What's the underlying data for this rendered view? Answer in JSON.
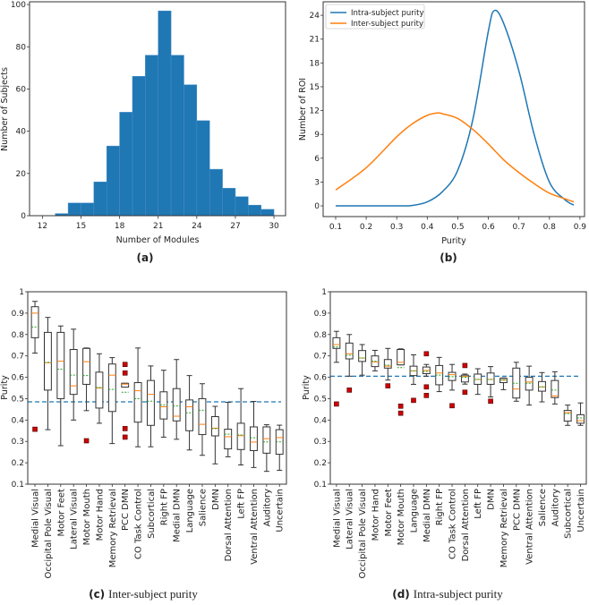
{
  "chart_data": [
    {
      "id": "a",
      "type": "bar",
      "caption_tag": "(a)",
      "caption": "",
      "xlabel": "Number of Modules",
      "ylabel": "Number of Subjects",
      "xlim": [
        11.0,
        30.9
      ],
      "ylim": [
        0,
        101.3
      ],
      "xticks": [
        12,
        15,
        18,
        21,
        24,
        27,
        30
      ],
      "yticks": [
        0,
        20,
        40,
        60,
        80,
        100
      ],
      "bin_edges": [
        12,
        13,
        14,
        15,
        16,
        17,
        18,
        19,
        20,
        21,
        22,
        23,
        24,
        25,
        26,
        27,
        28,
        29,
        30
      ],
      "values": [
        0,
        1,
        6,
        6,
        16,
        33,
        49,
        66,
        76,
        97,
        76,
        62,
        45,
        22,
        13,
        9,
        5,
        3
      ],
      "color": "#1f77b4"
    },
    {
      "id": "b",
      "type": "line",
      "caption_tag": "(b)",
      "caption": "",
      "xlabel": "Purity",
      "ylabel": "Number of ROI",
      "xlim": [
        0.059,
        0.915
      ],
      "ylim": [
        -1.35,
        25.7
      ],
      "xticks": [
        0.1,
        0.2,
        0.3,
        0.4,
        0.5,
        0.6,
        0.7,
        0.8,
        0.9
      ],
      "yticks": [
        0,
        3,
        6,
        9,
        12,
        15,
        18,
        21,
        24
      ],
      "legend": "top-left",
      "series": [
        {
          "name": "Intra-subject purity",
          "color": "#1f77b4",
          "x": [
            0.1,
            0.2,
            0.3,
            0.35,
            0.4,
            0.45,
            0.5,
            0.55,
            0.6,
            0.62,
            0.65,
            0.7,
            0.75,
            0.8,
            0.85,
            0.88
          ],
          "y": [
            0,
            0,
            0,
            0.05,
            0.5,
            1.8,
            4.5,
            11,
            22,
            24.6,
            23,
            17,
            9,
            3,
            0.8,
            0.1
          ]
        },
        {
          "name": "Inter-subject purity",
          "color": "#ff7f0e",
          "x": [
            0.1,
            0.2,
            0.3,
            0.35,
            0.4,
            0.435,
            0.45,
            0.5,
            0.55,
            0.6,
            0.65,
            0.7,
            0.75,
            0.8,
            0.85,
            0.88
          ],
          "y": [
            2.0,
            4.8,
            8.7,
            10.3,
            11.4,
            11.7,
            11.6,
            11.0,
            9.6,
            7.8,
            5.8,
            4.2,
            2.8,
            1.6,
            0.9,
            0.5
          ]
        }
      ]
    },
    {
      "id": "c",
      "type": "box",
      "caption_tag": "(c)",
      "caption": "Inter-subject purity",
      "ylabel": "Purity",
      "ylim": [
        0.1,
        1.0
      ],
      "yticks": [
        0.1,
        0.2,
        0.3,
        0.4,
        0.5,
        0.6,
        0.7,
        0.8,
        0.9,
        1.0
      ],
      "reference_line": 0.485,
      "categories": [
        "Medial Visual",
        "Occipital Pole Visual",
        "Motor Feet",
        "Lateral Visual",
        "Motor Mouth",
        "Motor Hand",
        "Memory Retrieval",
        "PCC DMN",
        "CO Task Control",
        "Subcortical",
        "Right FP",
        "Medial DMN",
        "Language",
        "Salience",
        "DMN",
        "Dorsal Attention",
        "Left FP",
        "Ventral Attention",
        "Auditory",
        "Uncertain"
      ],
      "boxes": [
        {
          "low": 0.713,
          "q1": 0.785,
          "median": 0.9,
          "mean": 0.835,
          "q3": 0.93,
          "high": 0.955,
          "outliers": [
            0.357
          ]
        },
        {
          "low": 0.355,
          "q1": 0.54,
          "median": 0.668,
          "mean": 0.67,
          "q3": 0.81,
          "high": 0.88,
          "outliers": []
        },
        {
          "low": 0.28,
          "q1": 0.5,
          "median": 0.675,
          "mean": 0.638,
          "q3": 0.81,
          "high": 0.84,
          "outliers": []
        },
        {
          "low": 0.4,
          "q1": 0.52,
          "median": 0.56,
          "mean": 0.61,
          "q3": 0.73,
          "high": 0.825,
          "outliers": []
        },
        {
          "low": 0.444,
          "q1": 0.567,
          "median": 0.673,
          "mean": 0.608,
          "q3": 0.735,
          "high": 0.737,
          "outliers": [
            0.303
          ]
        },
        {
          "low": 0.385,
          "q1": 0.456,
          "median": 0.55,
          "mean": 0.552,
          "q3": 0.624,
          "high": 0.71,
          "outliers": []
        },
        {
          "low": 0.29,
          "q1": 0.44,
          "median": 0.61,
          "mean": 0.543,
          "q3": 0.662,
          "high": 0.692,
          "outliers": []
        },
        {
          "low": 0.554,
          "q1": 0.554,
          "median": 0.568,
          "mean": 0.53,
          "q3": 0.572,
          "high": 0.572,
          "outliers": [
            0.66,
            0.62,
            0.36,
            0.32
          ]
        },
        {
          "low": 0.275,
          "q1": 0.39,
          "median": 0.537,
          "mean": 0.5,
          "q3": 0.575,
          "high": 0.737,
          "outliers": []
        },
        {
          "low": 0.275,
          "q1": 0.375,
          "median": 0.52,
          "mean": 0.488,
          "q3": 0.585,
          "high": 0.653,
          "outliers": []
        },
        {
          "low": 0.32,
          "q1": 0.405,
          "median": 0.462,
          "mean": 0.47,
          "q3": 0.532,
          "high": 0.633,
          "outliers": []
        },
        {
          "low": 0.31,
          "q1": 0.396,
          "median": 0.418,
          "mean": 0.466,
          "q3": 0.547,
          "high": 0.683,
          "outliers": []
        },
        {
          "low": 0.26,
          "q1": 0.35,
          "median": 0.462,
          "mean": 0.434,
          "q3": 0.494,
          "high": 0.608,
          "outliers": []
        },
        {
          "low": 0.235,
          "q1": 0.332,
          "median": 0.38,
          "mean": 0.446,
          "q3": 0.5,
          "high": 0.57,
          "outliers": []
        },
        {
          "low": 0.195,
          "q1": 0.326,
          "median": 0.362,
          "mean": 0.36,
          "q3": 0.416,
          "high": 0.464,
          "outliers": []
        },
        {
          "low": 0.228,
          "q1": 0.265,
          "median": 0.322,
          "mean": 0.334,
          "q3": 0.357,
          "high": 0.483,
          "outliers": []
        },
        {
          "low": 0.19,
          "q1": 0.262,
          "median": 0.327,
          "mean": 0.33,
          "q3": 0.385,
          "high": 0.547,
          "outliers": []
        },
        {
          "low": 0.178,
          "q1": 0.257,
          "median": 0.297,
          "mean": 0.317,
          "q3": 0.368,
          "high": 0.487,
          "outliers": []
        },
        {
          "low": 0.16,
          "q1": 0.245,
          "median": 0.313,
          "mean": 0.298,
          "q3": 0.368,
          "high": 0.378,
          "outliers": []
        },
        {
          "low": 0.165,
          "q1": 0.24,
          "median": 0.318,
          "mean": 0.298,
          "q3": 0.355,
          "high": 0.376,
          "outliers": []
        }
      ],
      "colors": {
        "median": "#ff7f0e",
        "mean": "#2ca02c",
        "outlier": "#d00000",
        "reference": "#1f77b4"
      }
    },
    {
      "id": "d",
      "type": "box",
      "caption_tag": "(d)",
      "caption": "Intra-subject purity",
      "ylabel": "Purity",
      "ylim": [
        0.1,
        1.0
      ],
      "yticks": [
        0.1,
        0.2,
        0.3,
        0.4,
        0.5,
        0.6,
        0.7,
        0.8,
        0.9,
        1.0
      ],
      "reference_line": 0.605,
      "categories": [
        "Medial Visual",
        "Lateral Visual",
        "Occipital Pole Visual",
        "Motor Hand",
        "Motor Feet",
        "Motor Mouth",
        "Language",
        "Medial DMN",
        "Right FP",
        "CO Task Control",
        "Dorsal Attention",
        "Left FP",
        "DMN",
        "Memory Retrieval",
        "PCC DMN",
        "Ventral Attention",
        "Salience",
        "Auditory",
        "Subcortical",
        "Uncertain"
      ],
      "boxes": [
        {
          "low": 0.67,
          "q1": 0.735,
          "median": 0.753,
          "mean": 0.742,
          "q3": 0.785,
          "high": 0.815,
          "outliers": [
            0.475
          ]
        },
        {
          "low": 0.605,
          "q1": 0.686,
          "median": 0.71,
          "mean": 0.703,
          "q3": 0.76,
          "high": 0.8,
          "outliers": [
            0.54
          ]
        },
        {
          "low": 0.61,
          "q1": 0.674,
          "median": 0.69,
          "mean": 0.69,
          "q3": 0.725,
          "high": 0.753,
          "outliers": []
        },
        {
          "low": 0.63,
          "q1": 0.65,
          "median": 0.672,
          "mean": 0.675,
          "q3": 0.7,
          "high": 0.726,
          "outliers": []
        },
        {
          "low": 0.587,
          "q1": 0.643,
          "median": 0.652,
          "mean": 0.657,
          "q3": 0.683,
          "high": 0.735,
          "outliers": [
            0.56
          ]
        },
        {
          "low": 0.658,
          "q1": 0.658,
          "median": 0.67,
          "mean": 0.645,
          "q3": 0.73,
          "high": 0.733,
          "outliers": [
            0.465,
            0.432
          ]
        },
        {
          "low": 0.567,
          "q1": 0.608,
          "median": 0.63,
          "mean": 0.63,
          "q3": 0.652,
          "high": 0.705,
          "outliers": [
            0.492
          ]
        },
        {
          "low": 0.605,
          "q1": 0.617,
          "median": 0.632,
          "mean": 0.627,
          "q3": 0.648,
          "high": 0.66,
          "outliers": [
            0.71,
            0.555,
            0.515
          ]
        },
        {
          "low": 0.533,
          "q1": 0.565,
          "median": 0.62,
          "mean": 0.61,
          "q3": 0.655,
          "high": 0.693,
          "outliers": []
        },
        {
          "low": 0.54,
          "q1": 0.585,
          "median": 0.612,
          "mean": 0.603,
          "q3": 0.623,
          "high": 0.66,
          "outliers": [
            0.467
          ]
        },
        {
          "low": 0.568,
          "q1": 0.578,
          "median": 0.604,
          "mean": 0.6,
          "q3": 0.61,
          "high": 0.615,
          "outliers": [
            0.655,
            0.53
          ]
        },
        {
          "low": 0.52,
          "q1": 0.567,
          "median": 0.59,
          "mean": 0.59,
          "q3": 0.615,
          "high": 0.64,
          "outliers": []
        },
        {
          "low": 0.508,
          "q1": 0.567,
          "median": 0.59,
          "mean": 0.59,
          "q3": 0.62,
          "high": 0.65,
          "outliers": [
            0.488
          ]
        },
        {
          "low": 0.542,
          "q1": 0.575,
          "median": 0.587,
          "mean": 0.587,
          "q3": 0.595,
          "high": 0.597,
          "outliers": []
        },
        {
          "low": 0.488,
          "q1": 0.503,
          "median": 0.545,
          "mean": 0.572,
          "q3": 0.643,
          "high": 0.67,
          "outliers": []
        },
        {
          "low": 0.47,
          "q1": 0.54,
          "median": 0.578,
          "mean": 0.572,
          "q3": 0.6,
          "high": 0.652,
          "outliers": []
        },
        {
          "low": 0.485,
          "q1": 0.535,
          "median": 0.555,
          "mean": 0.555,
          "q3": 0.58,
          "high": 0.622,
          "outliers": []
        },
        {
          "low": 0.475,
          "q1": 0.505,
          "median": 0.513,
          "mean": 0.54,
          "q3": 0.585,
          "high": 0.626,
          "outliers": []
        },
        {
          "low": 0.375,
          "q1": 0.395,
          "median": 0.435,
          "mean": 0.43,
          "q3": 0.445,
          "high": 0.47,
          "outliers": []
        },
        {
          "low": 0.375,
          "q1": 0.385,
          "median": 0.397,
          "mean": 0.41,
          "q3": 0.425,
          "high": 0.48,
          "outliers": []
        }
      ],
      "colors": {
        "median": "#ff7f0e",
        "mean": "#2ca02c",
        "outlier": "#d00000",
        "reference": "#1f77b4"
      }
    }
  ]
}
